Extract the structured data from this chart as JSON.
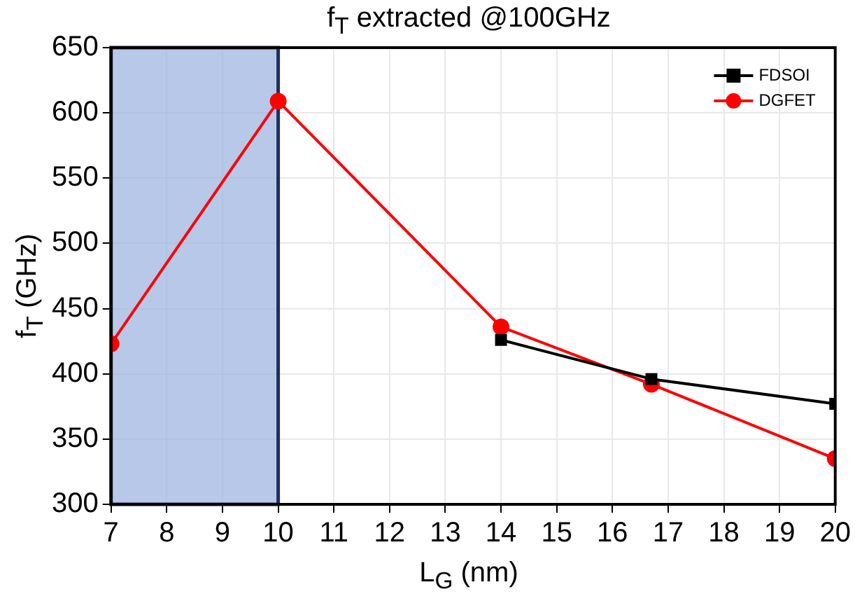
{
  "chart_data": {
    "type": "line",
    "title": "f$_{T}$ extracted @100GHz",
    "xlabel": "L$_{G}$ (nm)",
    "ylabel": "f$_{T}$ (GHz)",
    "xlim": [
      7,
      20
    ],
    "xticks": [
      7,
      8,
      9,
      10,
      11,
      12,
      13,
      14,
      15,
      16,
      17,
      18,
      19,
      20
    ],
    "ylim": [
      300,
      650
    ],
    "yticks": [
      300,
      350,
      400,
      450,
      500,
      550,
      600,
      650
    ],
    "grid": true,
    "legend": "top right",
    "line_style": "solid",
    "bands": [
      {
        "axis": "x",
        "from": 7,
        "to": 10,
        "color": "#a0b6e2"
      }
    ],
    "series": [
      {
        "name": "FDSOI",
        "color": "#000000",
        "marker": "square",
        "x": [
          14,
          16.7,
          20
        ],
        "values": [
          426,
          396,
          377
        ]
      },
      {
        "name": "DGFET",
        "color": "#ff0000",
        "marker": "circle",
        "x": [
          7,
          10,
          14,
          16.7,
          20
        ],
        "values": [
          423,
          609,
          436,
          392,
          335
        ]
      }
    ]
  }
}
